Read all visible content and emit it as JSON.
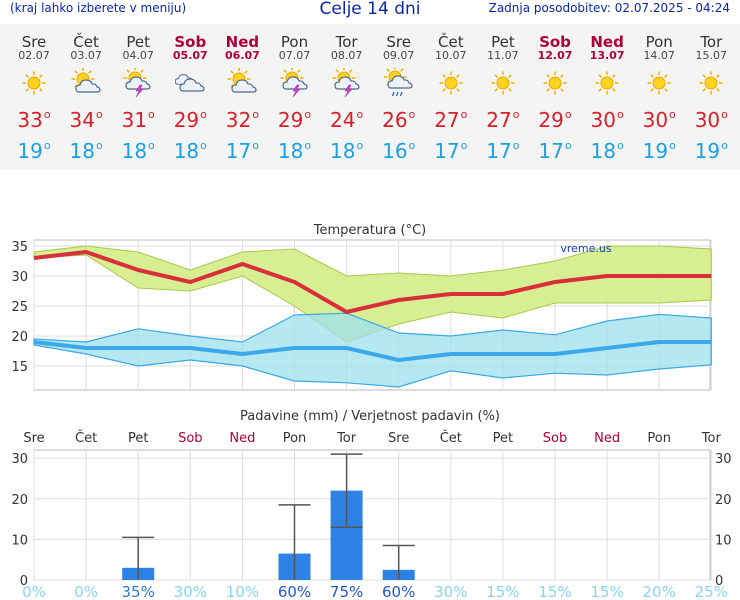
{
  "header": {
    "left_note": "(kraj lahko izberete v meniju)",
    "title": "Celje 14 dni",
    "updated": "Zadnja posodobitev: 02.07.2025 - 04:24"
  },
  "colors": {
    "max_line": "#d7303a",
    "max_band": "#d4ec86",
    "min_line": "#3aa8ea",
    "min_band": "#9ee0ee",
    "precip_bar": "#2e82e6",
    "weekend": "#b0003a"
  },
  "days": [
    {
      "name": "Sre",
      "date": "02.07",
      "icon": "sun-icon",
      "tmax": "33",
      "tmin": "19",
      "weekend": false
    },
    {
      "name": "Čet",
      "date": "03.07",
      "icon": "sun-cloud-icon",
      "tmax": "34",
      "tmin": "18",
      "weekend": false
    },
    {
      "name": "Pet",
      "date": "04.07",
      "icon": "sun-storm-icon",
      "tmax": "31",
      "tmin": "18",
      "weekend": false
    },
    {
      "name": "Sob",
      "date": "05.07",
      "icon": "cloudy-icon",
      "tmax": "29",
      "tmin": "18",
      "weekend": true
    },
    {
      "name": "Ned",
      "date": "06.07",
      "icon": "sun-cloud-icon",
      "tmax": "32",
      "tmin": "17",
      "weekend": true
    },
    {
      "name": "Pon",
      "date": "07.07",
      "icon": "sun-storm-icon",
      "tmax": "29",
      "tmin": "18",
      "weekend": false
    },
    {
      "name": "Tor",
      "date": "08.07",
      "icon": "sun-storm-icon",
      "tmax": "24",
      "tmin": "18",
      "weekend": false
    },
    {
      "name": "Sre",
      "date": "09.07",
      "icon": "sun-rain-icon",
      "tmax": "26",
      "tmin": "16",
      "weekend": false
    },
    {
      "name": "Čet",
      "date": "10.07",
      "icon": "sun-icon",
      "tmax": "27",
      "tmin": "17",
      "weekend": false
    },
    {
      "name": "Pet",
      "date": "11.07",
      "icon": "sun-icon",
      "tmax": "27",
      "tmin": "17",
      "weekend": false
    },
    {
      "name": "Sob",
      "date": "12.07",
      "icon": "sun-icon",
      "tmax": "29",
      "tmin": "17",
      "weekend": true
    },
    {
      "name": "Ned",
      "date": "13.07",
      "icon": "sun-icon",
      "tmax": "30",
      "tmin": "18",
      "weekend": true
    },
    {
      "name": "Pon",
      "date": "14.07",
      "icon": "sun-icon",
      "tmax": "30",
      "tmin": "19",
      "weekend": false
    },
    {
      "name": "Tor",
      "date": "15.07",
      "icon": "sun-icon",
      "tmax": "30",
      "tmin": "19",
      "weekend": false
    }
  ],
  "chart_data": [
    {
      "type": "line",
      "title": "Temperatura (°C)",
      "watermark": "vreme.us",
      "ylim": [
        11,
        36
      ],
      "yticks": [
        15,
        20,
        25,
        30,
        35
      ],
      "grid": true,
      "series": [
        {
          "values": [
            33,
            34,
            31,
            29,
            32,
            29,
            24,
            26,
            27,
            27,
            29,
            30,
            30,
            30
          ]
        },
        {
          "values": [
            19,
            18,
            18,
            18,
            17,
            18,
            18,
            16,
            17,
            17,
            17,
            18,
            19,
            19
          ]
        }
      ],
      "bands": [
        {
          "low": [
            33,
            33.5,
            28,
            27.5,
            30,
            25,
            19,
            22,
            24,
            23,
            25.5,
            25.5,
            25.5,
            26
          ],
          "high": [
            34,
            35,
            34,
            31,
            34,
            34.5,
            30,
            30.5,
            30,
            31,
            32.5,
            35,
            35,
            34.5
          ]
        },
        {
          "low": [
            18.5,
            17,
            15,
            16,
            15,
            12.5,
            12.2,
            11.5,
            14.2,
            13,
            13.8,
            13.5,
            14.5,
            15.2
          ],
          "high": [
            19.5,
            19,
            21.2,
            20,
            19,
            23.5,
            23.8,
            20.5,
            20,
            21,
            20.2,
            22.5,
            23.6,
            23
          ]
        }
      ]
    },
    {
      "type": "bar",
      "title": "Padavine (mm) / Verjetnost padavin (%)",
      "ylim": [
        0,
        32
      ],
      "yticks": [
        0,
        10,
        20,
        30
      ],
      "grid": true,
      "categories": [
        "Sre",
        "Čet",
        "Pet",
        "Sob",
        "Ned",
        "Pon",
        "Tor",
        "Sre",
        "Čet",
        "Pet",
        "Sob",
        "Ned",
        "Pon",
        "Tor"
      ],
      "values": [
        0,
        0,
        3,
        0,
        0,
        6.5,
        22,
        2.5,
        0,
        0,
        0,
        0,
        0,
        0
      ],
      "error_low": [
        0,
        0,
        0,
        0,
        0,
        0,
        13,
        0,
        0,
        0,
        0,
        0,
        0,
        0
      ],
      "error_high": [
        0,
        0,
        10.5,
        0,
        0,
        18.5,
        31,
        8.5,
        0,
        0,
        0,
        0,
        0,
        0
      ],
      "probability": [
        "0%",
        "0%",
        "35%",
        "30%",
        "10%",
        "60%",
        "75%",
        "60%",
        "30%",
        "15%",
        "15%",
        "15%",
        "20%",
        "25%"
      ]
    }
  ]
}
